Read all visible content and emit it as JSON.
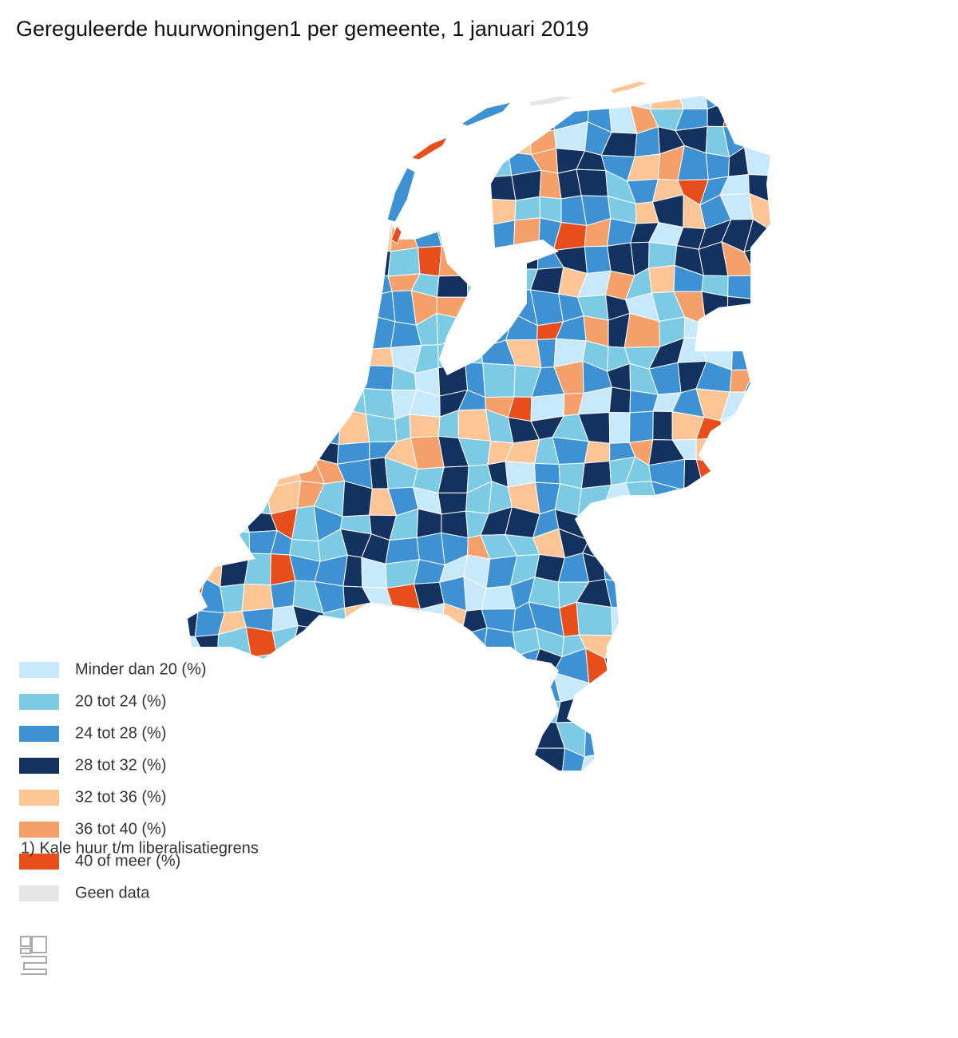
{
  "title": "Gereguleerde huurwoningen1 per gemeente, 1 januari 2019",
  "legend": {
    "items": [
      {
        "label": "Minder dan 20 (%)",
        "color": "#c8e8fb"
      },
      {
        "label": "20 tot 24 (%)",
        "color": "#7ccae3"
      },
      {
        "label": "24 tot 28 (%)",
        "color": "#3e91d3"
      },
      {
        "label": "28 tot 32 (%)",
        "color": "#14325f"
      },
      {
        "label": "32 tot 36 (%)",
        "color": "#fdc596"
      },
      {
        "label": "36 tot 40 (%)",
        "color": "#f59f6b"
      },
      {
        "label": "40 of meer (%)",
        "color": "#e84e1b"
      },
      {
        "label": "Geen data",
        "color": "#e6e6e6"
      }
    ]
  },
  "footnote": "1) Kale huur t/m liberalisatiegrens"
}
